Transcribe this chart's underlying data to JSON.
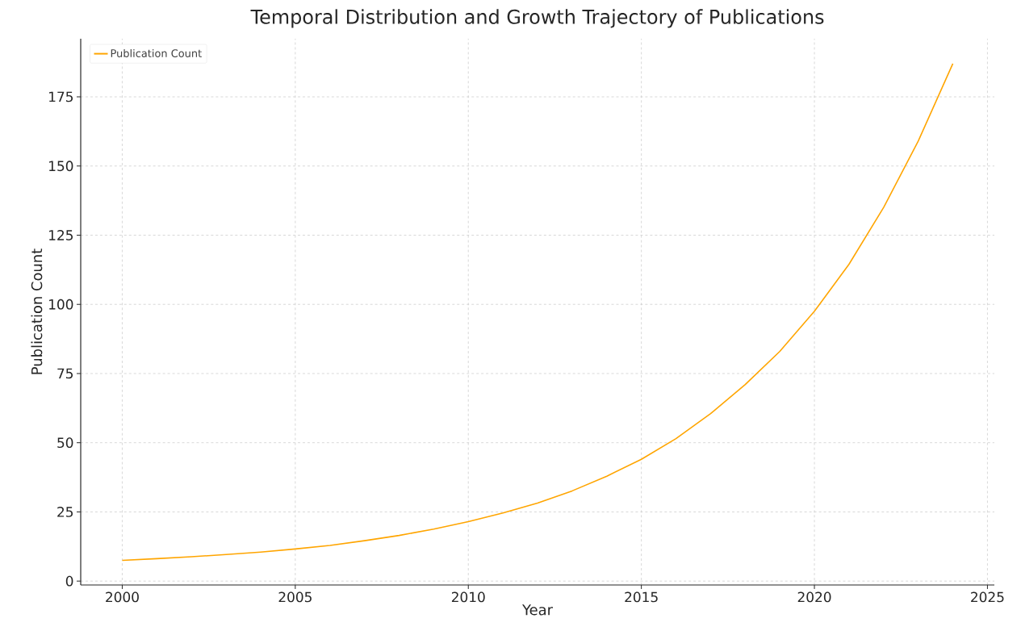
{
  "chart_data": {
    "type": "line",
    "title": "Temporal Distribution and Growth Trajectory of Publications",
    "xlabel": "Year",
    "ylabel": "Publication Count",
    "x": [
      2000,
      2001,
      2002,
      2003,
      2004,
      2005,
      2006,
      2007,
      2008,
      2009,
      2010,
      2011,
      2012,
      2013,
      2014,
      2015,
      2016,
      2017,
      2018,
      2019,
      2020,
      2021,
      2022,
      2023,
      2024
    ],
    "series": [
      {
        "name": "Publication Count",
        "color": "#ffa500",
        "values": [
          7.5,
          8.1,
          8.8,
          9.6,
          10.5,
          11.6,
          12.9,
          14.6,
          16.5,
          18.8,
          21.5,
          24.6,
          28.2,
          32.6,
          37.9,
          44,
          51.5,
          60.5,
          71,
          83,
          97.5,
          114.5,
          135,
          159,
          187
        ]
      }
    ],
    "xlim": [
      1998.8,
      2025.2
    ],
    "ylim": [
      -1.4,
      196
    ],
    "xticks": [
      2000,
      2005,
      2010,
      2015,
      2020,
      2025
    ],
    "yticks": [
      0,
      25,
      50,
      75,
      100,
      125,
      150,
      175
    ],
    "grid": true,
    "legend": "top left",
    "line_style": "solid"
  }
}
